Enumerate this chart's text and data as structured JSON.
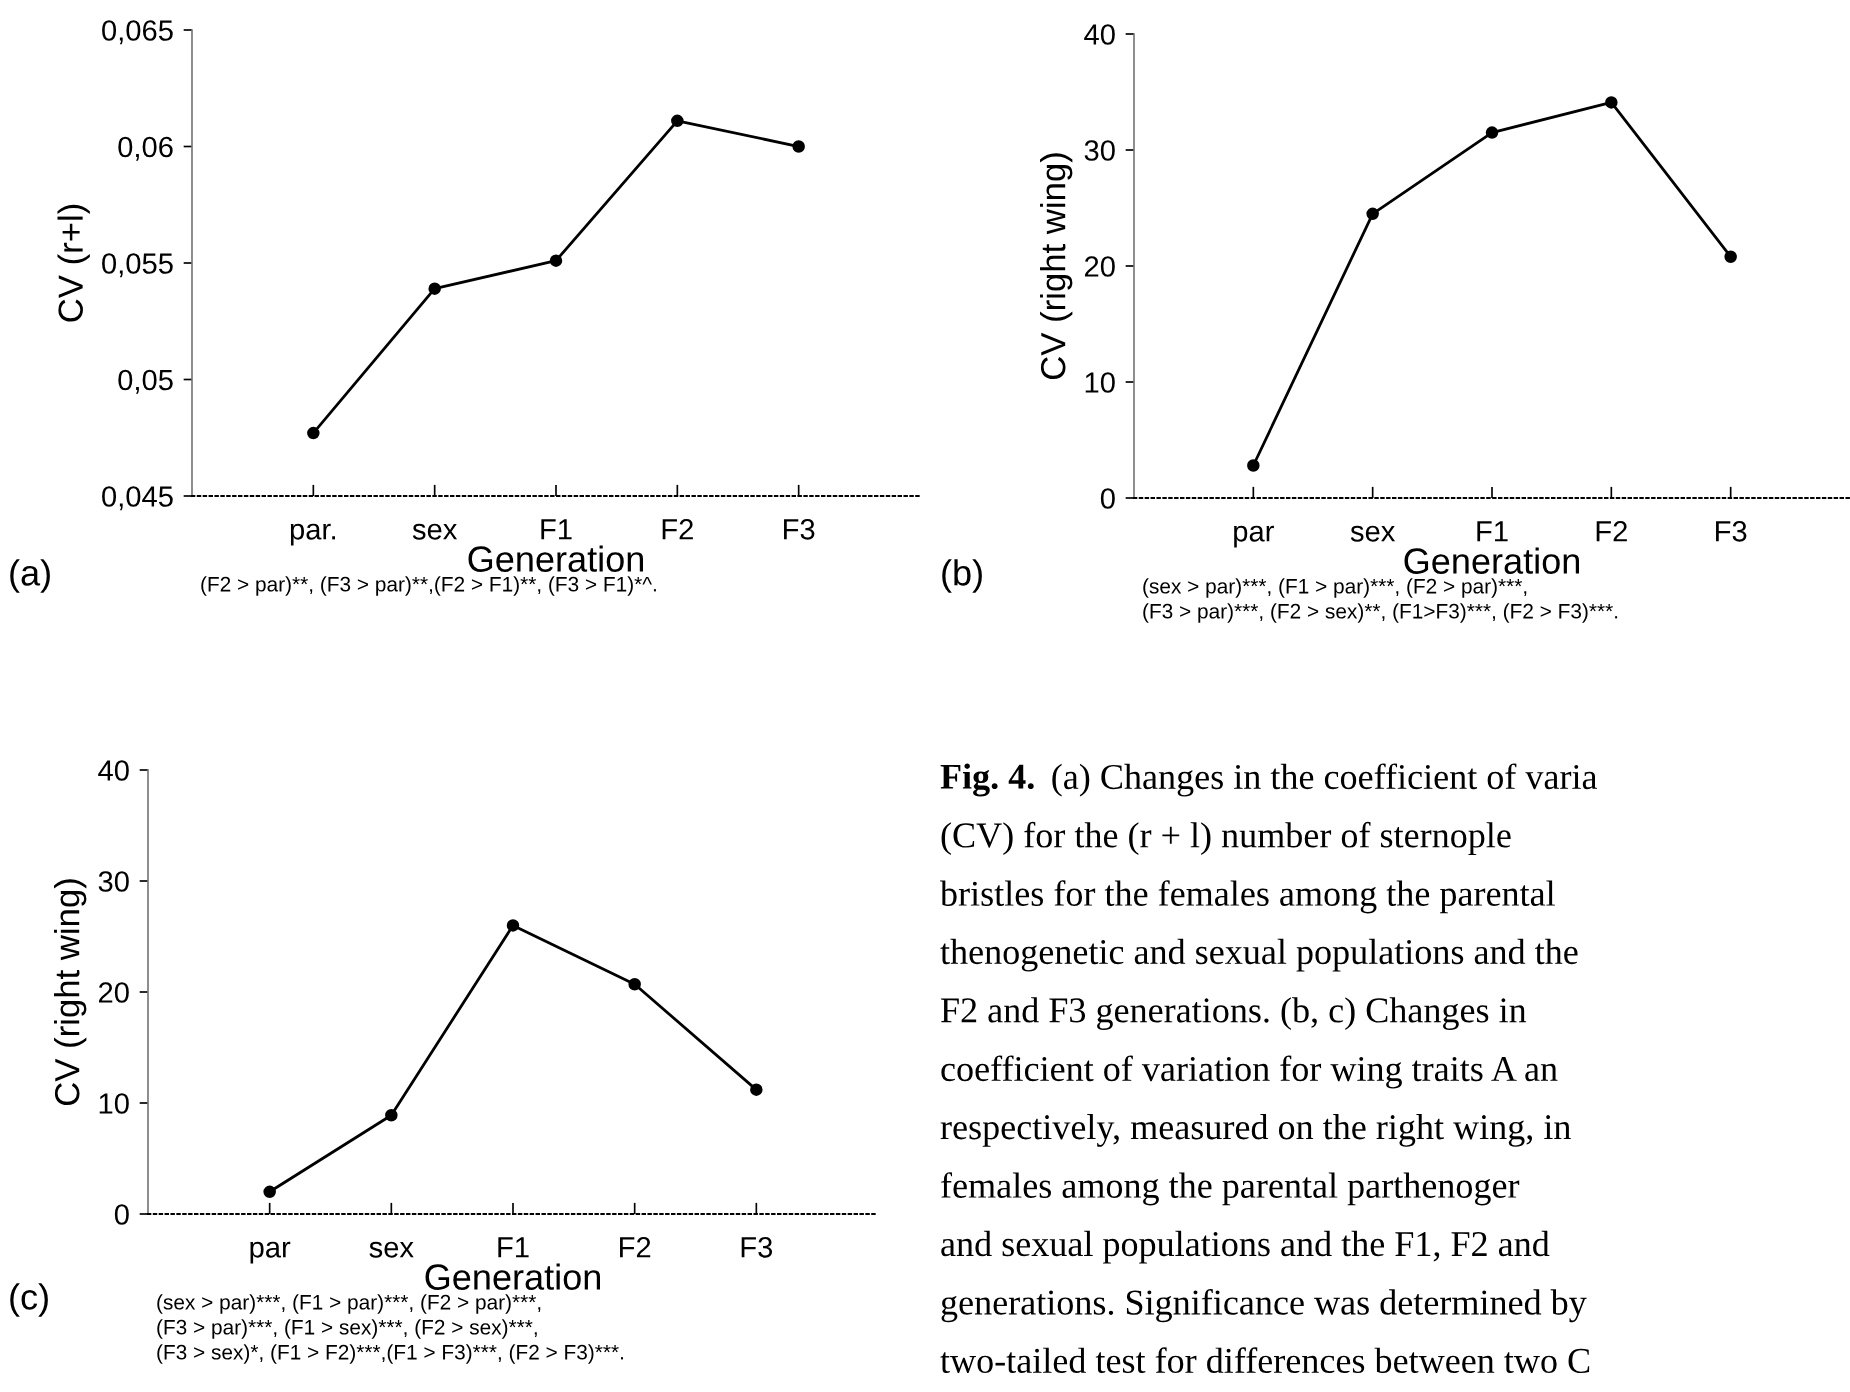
{
  "chart_data": [
    {
      "type": "line",
      "categories": [
        "par.",
        "sex",
        "F1",
        "F2",
        "F3"
      ],
      "values": [
        0.0477,
        0.0539,
        0.0551,
        0.0611,
        0.06
      ],
      "color": "#000000",
      "marker": "circle",
      "line_style": "solid",
      "xlabel": "Generation",
      "ylabel": "CV (r+l)",
      "ylim": [
        0.045,
        0.065
      ],
      "yticks": [
        {
          "value": 0.045,
          "label": "0,045"
        },
        {
          "value": 0.05,
          "label": "0,05"
        },
        {
          "value": 0.055,
          "label": "0,055"
        },
        {
          "value": 0.06,
          "label": "0,06"
        },
        {
          "value": 0.065,
          "label": "0,065"
        }
      ],
      "annotations": [
        "(a)",
        "(F2 > par)**, (F3 > par)**,(F2 > F1)**, (F3 > F1)*^."
      ]
    },
    {
      "type": "line",
      "categories": [
        "par",
        "sex",
        "F1",
        "F2",
        "F3"
      ],
      "values": [
        2.8,
        24.5,
        31.5,
        34.1,
        20.8
      ],
      "color": "#000000",
      "marker": "circle",
      "line_style": "solid",
      "xlabel": "Generation",
      "ylabel": "CV (right wing)",
      "ylim": [
        0,
        40
      ],
      "yticks": [
        0,
        10,
        20,
        30,
        40
      ],
      "annotations": [
        "(b)",
        "(sex > par)***, (F1 > par)***, (F2 > par)***,",
        "(F3 > par)***, (F2 > sex)**, (F1>F3)***, (F2 > F3)***."
      ]
    },
    {
      "type": "line",
      "categories": [
        "par",
        "sex",
        "F1",
        "F2",
        "F3"
      ],
      "values": [
        2.0,
        8.9,
        26.0,
        20.7,
        11.2
      ],
      "color": "#000000",
      "marker": "circle",
      "line_style": "solid",
      "xlabel": "Generation",
      "ylabel": "CV (right wing)",
      "ylim": [
        0,
        40
      ],
      "yticks": [
        0,
        10,
        20,
        30,
        40
      ],
      "annotations": [
        "(c)",
        "(sex > par)***, (F1 > par)***, (F2 > par)***,",
        "(F3 > par)***, (F1 > sex)***, (F2 > sex)***,",
        "(F3 > sex)*, (F1 > F2)***,(F1 > F3)***, (F2 > F3)***."
      ]
    },
    {
      "type": "other",
      "title": "Fig. 4.",
      "annotations": [
        "(a) Changes in the coefficient of varia",
        "(CV) for the (r + l) number of sternople",
        "bristles for the females among the parental",
        "thenogenetic and sexual populations and the",
        "F2 and F3 generations. (b, c) Changes in",
        "coefficient of variation for wing traits A an",
        "respectively, measured on the right wing, in",
        "females among the parental parthenoger",
        "and sexual populations and the F1, F2 and",
        "generations. Significance was determined by",
        "two-tailed test for differences between two C"
      ]
    }
  ]
}
